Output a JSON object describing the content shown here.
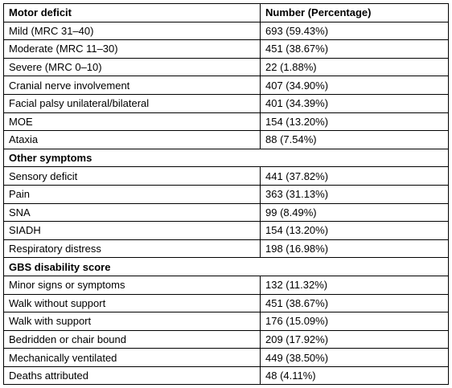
{
  "table": {
    "header": [
      "Motor deficit",
      "Number (Percentage)"
    ],
    "rows": [
      [
        "Mild (MRC 31–40)",
        "693 (59.43%)"
      ],
      [
        "Moderate (MRC 11–30)",
        "451 (38.67%)"
      ],
      [
        "Severe (MRC 0–10)",
        "22 (1.88%)"
      ],
      [
        "Cranial nerve involvement",
        "407 (34.90%)"
      ],
      [
        "Facial palsy unilateral/bilateral",
        "401 (34.39%)"
      ],
      [
        "MOE",
        "154 (13.20%)"
      ],
      [
        "Ataxia",
        "88 (7.54%)"
      ],
      [
        "Other symptoms"
      ],
      [
        "Sensory deficit",
        "441 (37.82%)"
      ],
      [
        "Pain",
        "363 (31.13%)"
      ],
      [
        "SNA",
        "99 (8.49%)"
      ],
      [
        "SIADH",
        "154 (13.20%)"
      ],
      [
        "Respiratory distress",
        "198 (16.98%)"
      ],
      [
        "GBS disability score"
      ],
      [
        "Minor signs or symptoms",
        "132 (11.32%)"
      ],
      [
        "Walk without support",
        "451 (38.67%)"
      ],
      [
        "Walk with support",
        "176 (15.09%)"
      ],
      [
        "Bedridden or chair bound",
        "209 (17.92%)"
      ],
      [
        "Mechanically ventilated",
        "449 (38.50%)"
      ],
      [
        "Deaths attributed",
        "48 (4.11%)"
      ]
    ]
  }
}
